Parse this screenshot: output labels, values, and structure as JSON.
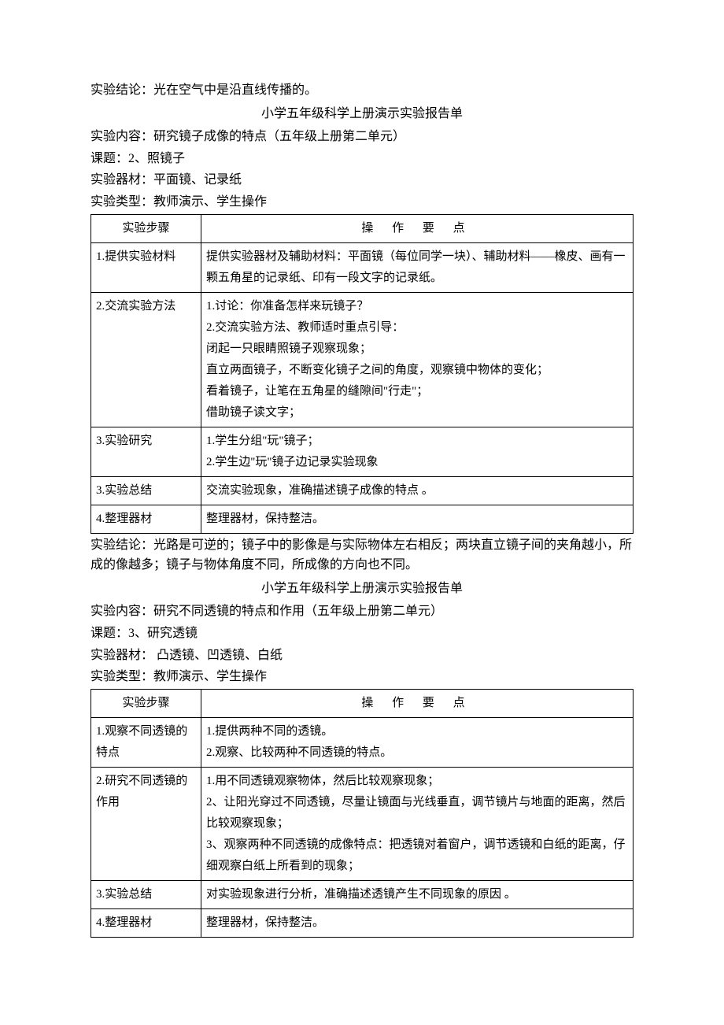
{
  "intro_conclusion": "实验结论：光在空气中是沿直线传播的。",
  "report1": {
    "title": "小学五年级科学上册演示实验报告单",
    "content": "实验内容：研究镜子成像的特点（五年级上册第二单元）",
    "topic": "课题：2、照镜子",
    "equipment": "实验器材：平面镜、记录纸",
    "type": "实验类型：教师演示、学生操作",
    "headers": {
      "step": "实验步骤",
      "op": "操  作  要  点"
    },
    "rows": [
      {
        "step": "1.提供实验材料",
        "op": "提供实验器材及辅助材料：平面镜（每位同学一块）、辅助材料——橡皮、画有一颗五角星的记录纸、印有一段文字的记录纸。"
      },
      {
        "step": "2.交流实验方法",
        "op": "1.讨论：你准备怎样来玩镜子？\n2.交流实验方法、教师适时重点引导：\n闭起一只眼睛照镜子观察现象；\n直立两面镜子，不断变化镜子之间的角度，观察镜中物体的变化；\n看着镜子，让笔在五角星的缝隙间\"行走\"；\n借助镜子读文字；"
      },
      {
        "step": "3.实验研究",
        "op": "1.学生分组\"玩\"镜子；\n2.学生边\"玩\"镜子边记录实验现象"
      },
      {
        "step": "3.实验总结",
        "op": "交流实验现象，准确描述镜子成像的特点 。"
      },
      {
        "step": "4.整理器材",
        "op": "整理器材，保持整洁。"
      }
    ],
    "conclusion": "实验结论：光路是可逆的；镜子中的影像是与实际物体左右相反；两块直立镜子间的夹角越小，所成的像越多；镜子与物体角度不同，所成像的方向也不同。"
  },
  "report2": {
    "title": "小学五年级科学上册演示实验报告单",
    "content": "实验内容：研究不同透镜的特点和作用（五年级上册第二单元）",
    "topic": "课题：3、研究透镜",
    "equipment": "实验器材： 凸透镜、凹透镜、白纸",
    "type": "实验类型：教师演示、学生操作",
    "headers": {
      "step": "实验步骤",
      "op": "操  作  要  点"
    },
    "rows": [
      {
        "step": "1.观察不同透镜的特点",
        "op": "1.提供两种不同的透镜。\n2.观察、比较两种不同透镜的特点。"
      },
      {
        "step": "2.研究不同透镜的作用",
        "op": "1.用不同透镜观察物体，然后比较观察现象；\n2、让阳光穿过不同透镜，尽量让镜面与光线垂直，调节镜片与地面的距离，然后比较观察现象；\n3、观察两种不同透镜的成像特点：把透镜对着窗户，调节透镜和白纸的距离，仔细观察白纸上所看到的现象；"
      },
      {
        "step": "3.实验总结",
        "op": "对实验现象进行分析，准确描述透镜产生不同现象的原因 。"
      },
      {
        "step": "4.整理器材",
        "op": "整理器材，保持整洁。"
      }
    ]
  }
}
